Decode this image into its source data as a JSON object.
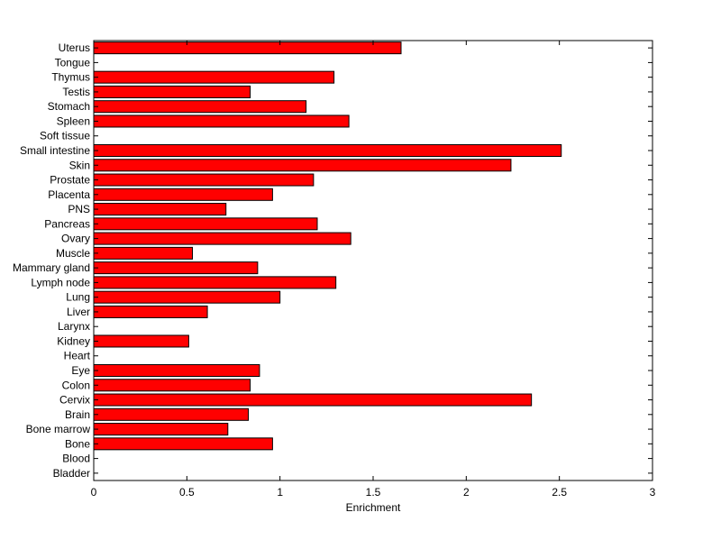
{
  "chart_data": {
    "type": "bar",
    "orientation": "horizontal",
    "title": "",
    "xlabel": "Enrichment",
    "ylabel": "",
    "xlim": [
      0,
      3
    ],
    "xticks": [
      "0",
      "0.5",
      "1",
      "1.5",
      "2",
      "2.5",
      "3"
    ],
    "grid": false,
    "bar_color": "#ff0000",
    "categories": [
      "Uterus",
      "Tongue",
      "Thymus",
      "Testis",
      "Stomach",
      "Spleen",
      "Soft tissue",
      "Small intestine",
      "Skin",
      "Prostate",
      "Placenta",
      "PNS",
      "Pancreas",
      "Ovary",
      "Muscle",
      "Mammary gland",
      "Lymph node",
      "Lung",
      "Liver",
      "Larynx",
      "Kidney",
      "Heart",
      "Eye",
      "Colon",
      "Cervix",
      "Brain",
      "Bone marrow",
      "Bone",
      "Blood",
      "Bladder"
    ],
    "values": [
      1.65,
      0,
      1.29,
      0.84,
      1.14,
      1.37,
      0,
      2.51,
      2.24,
      1.18,
      0.96,
      0.71,
      1.2,
      1.38,
      0.53,
      0.88,
      1.3,
      1.0,
      0.61,
      0,
      0.51,
      0,
      0.89,
      0.84,
      2.35,
      0.83,
      0.72,
      0.96,
      0,
      0
    ]
  }
}
